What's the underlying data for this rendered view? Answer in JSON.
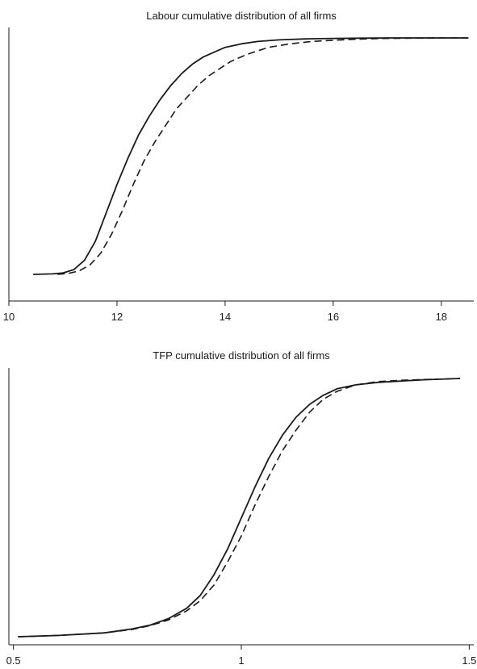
{
  "chart_data": [
    {
      "type": "line",
      "title": "Labour cumulative distribution of all firms",
      "xlabel": "",
      "ylabel": "",
      "xlim": [
        10,
        18.6
      ],
      "ylim": [
        0,
        1
      ],
      "x_ticks": [
        10,
        12,
        14,
        16,
        18
      ],
      "x_tick_labels": [
        "10",
        "12",
        "14",
        "16",
        "18"
      ],
      "y_ticks": [],
      "grid": false,
      "legend": "none",
      "series": [
        {
          "style": "solid",
          "color": "#1a1a1a",
          "x": [
            10.45,
            10.8,
            11.0,
            11.2,
            11.4,
            11.6,
            11.8,
            12.0,
            12.2,
            12.4,
            12.6,
            12.8,
            13.0,
            13.2,
            13.4,
            13.6,
            13.8,
            14.0,
            14.3,
            14.6,
            15.0,
            15.5,
            16.0,
            16.5,
            17.0,
            18.0,
            18.5
          ],
          "y": [
            0.0,
            0.002,
            0.006,
            0.02,
            0.06,
            0.14,
            0.26,
            0.38,
            0.49,
            0.59,
            0.67,
            0.74,
            0.8,
            0.85,
            0.89,
            0.92,
            0.94,
            0.96,
            0.975,
            0.985,
            0.992,
            0.996,
            0.998,
            0.999,
            1.0,
            1.0,
            1.0
          ]
        },
        {
          "style": "dashed",
          "color": "#1a1a1a",
          "x": [
            10.9,
            11.1,
            11.3,
            11.5,
            11.7,
            11.9,
            12.1,
            12.3,
            12.5,
            12.7,
            12.9,
            13.1,
            13.3,
            13.5,
            13.7,
            13.9,
            14.1,
            14.4,
            14.8,
            15.2,
            15.6,
            16.0,
            16.5,
            17.0,
            18.0,
            18.5
          ],
          "y": [
            0.0,
            0.004,
            0.015,
            0.04,
            0.09,
            0.17,
            0.27,
            0.38,
            0.48,
            0.56,
            0.63,
            0.7,
            0.75,
            0.8,
            0.84,
            0.87,
            0.9,
            0.93,
            0.96,
            0.975,
            0.985,
            0.99,
            0.995,
            0.998,
            1.0,
            1.0
          ]
        }
      ]
    },
    {
      "type": "line",
      "title": "TFP cumulative distribution of all firms",
      "xlabel": "",
      "ylabel": "",
      "xlim": [
        0.49,
        1.51
      ],
      "ylim": [
        0,
        1
      ],
      "x_ticks": [
        0.5,
        1,
        1.5
      ],
      "x_tick_labels": [
        "0.5",
        "1",
        "1.5"
      ],
      "y_ticks": [],
      "grid": false,
      "legend": "none",
      "series": [
        {
          "style": "solid",
          "color": "#1a1a1a",
          "x": [
            0.51,
            0.6,
            0.7,
            0.76,
            0.8,
            0.84,
            0.88,
            0.91,
            0.94,
            0.97,
            1.0,
            1.03,
            1.06,
            1.09,
            1.12,
            1.15,
            1.18,
            1.21,
            1.25,
            1.3,
            1.35,
            1.4,
            1.48
          ],
          "y": [
            0.0,
            0.005,
            0.015,
            0.03,
            0.045,
            0.07,
            0.11,
            0.16,
            0.24,
            0.34,
            0.46,
            0.58,
            0.69,
            0.78,
            0.85,
            0.9,
            0.935,
            0.96,
            0.975,
            0.985,
            0.99,
            0.995,
            1.0
          ]
        },
        {
          "style": "dashed",
          "color": "#1a1a1a",
          "x": [
            0.51,
            0.6,
            0.7,
            0.76,
            0.8,
            0.84,
            0.88,
            0.91,
            0.94,
            0.97,
            1.0,
            1.03,
            1.06,
            1.09,
            1.12,
            1.15,
            1.18,
            1.21,
            1.25,
            1.3,
            1.35,
            1.4,
            1.48
          ],
          "y": [
            0.0,
            0.005,
            0.015,
            0.028,
            0.043,
            0.065,
            0.1,
            0.14,
            0.2,
            0.29,
            0.39,
            0.51,
            0.62,
            0.72,
            0.8,
            0.87,
            0.92,
            0.95,
            0.975,
            0.988,
            0.993,
            0.996,
            1.0
          ]
        }
      ]
    }
  ]
}
